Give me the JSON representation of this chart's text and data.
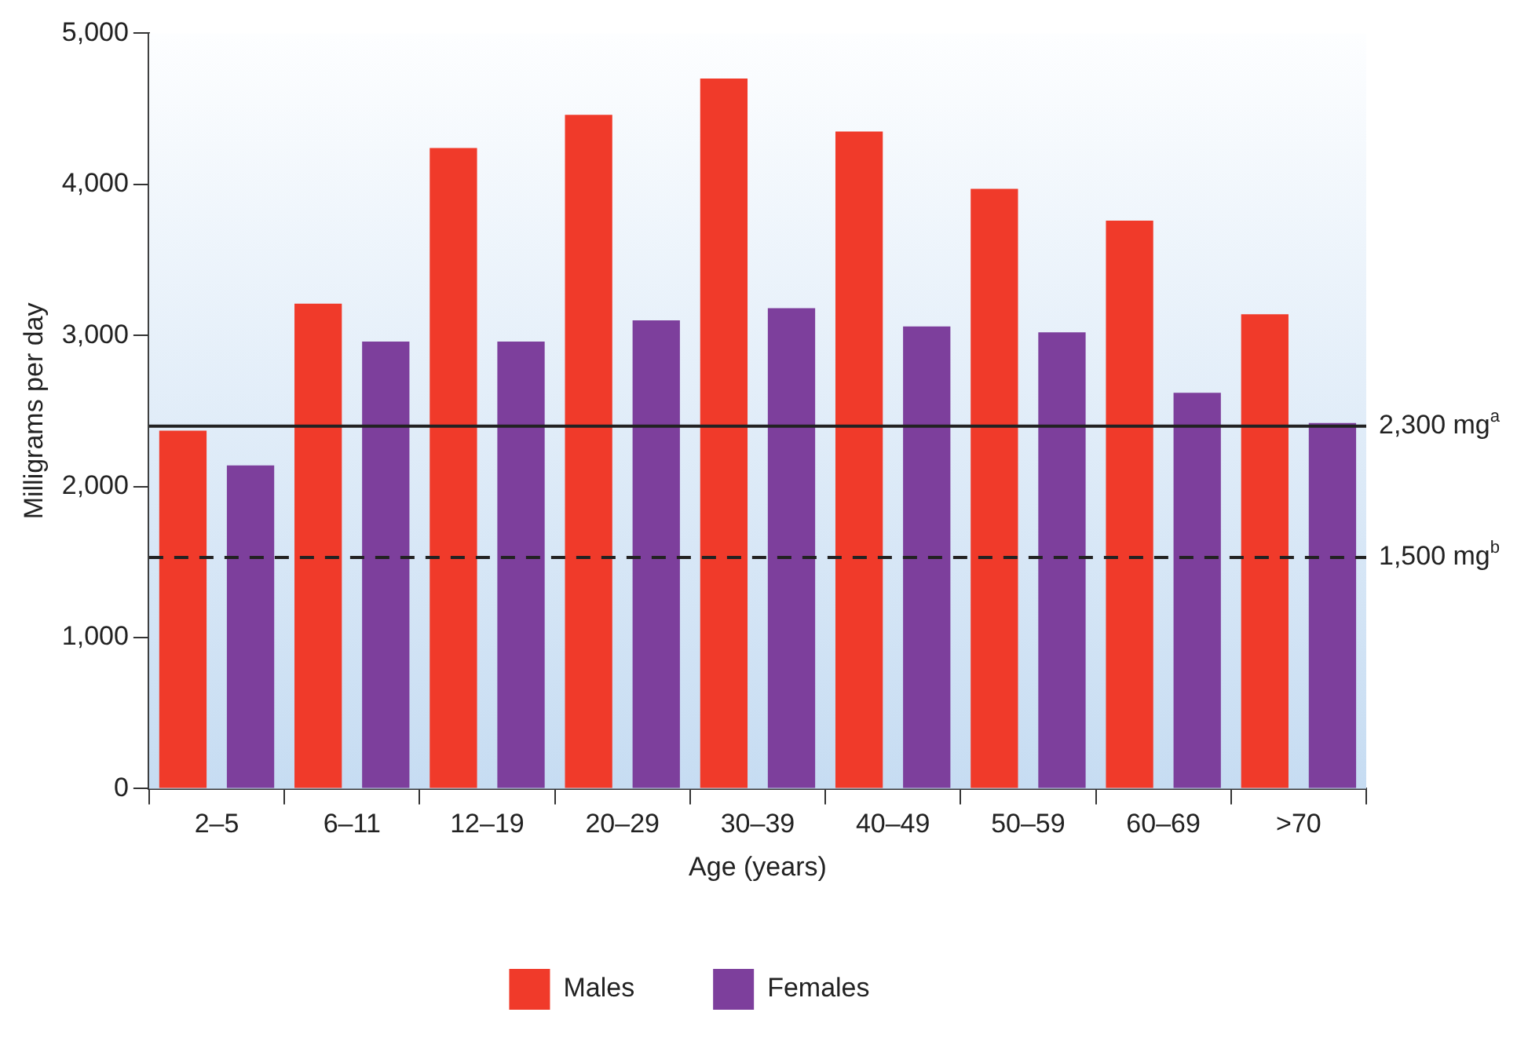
{
  "chart_data": {
    "type": "bar",
    "xlabel": "Age (years)",
    "ylabel": "Milligrams per day",
    "categories": [
      "2–5",
      "6–11",
      "12–19",
      "20–29",
      "30–39",
      "40–49",
      "50–59",
      "60–69",
      ">70"
    ],
    "series": [
      {
        "name": "Males",
        "color": "#f03a2a",
        "values": [
          2370,
          3210,
          4240,
          4460,
          4700,
          4350,
          3970,
          3760,
          3140
        ]
      },
      {
        "name": "Females",
        "color": "#7d3f9c",
        "values": [
          2140,
          2960,
          2960,
          3100,
          3180,
          3060,
          3020,
          2620,
          2420
        ]
      }
    ],
    "ylim": [
      0,
      5000
    ],
    "yticks": [
      {
        "value": 0,
        "label": "0"
      },
      {
        "value": 1000,
        "label": "1,000"
      },
      {
        "value": 2000,
        "label": "2,000"
      },
      {
        "value": 3000,
        "label": "3,000"
      },
      {
        "value": 4000,
        "label": "4,000"
      },
      {
        "value": 5000,
        "label": "5,000"
      }
    ],
    "ref_lines": [
      {
        "axis": "y",
        "value": 2400,
        "label": "2,300 mg$^{a}$",
        "color": "#222222",
        "line_style": "solid"
      },
      {
        "axis": "y",
        "value": 1530,
        "label": "1,500 mg$^{b}$",
        "color": "#222222",
        "line_style": "dashed"
      }
    ],
    "grid": false,
    "legend": "bottom"
  }
}
